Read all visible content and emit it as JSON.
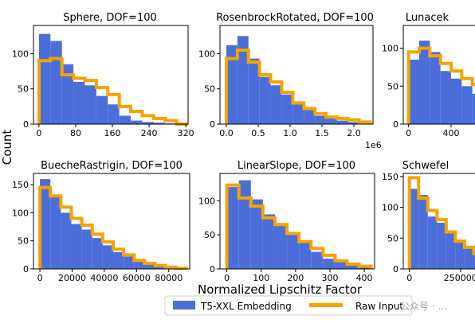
{
  "colors": {
    "embedding": "#4c6edb",
    "raw": "#f5a300"
  },
  "figure": {
    "xlabel": "Normalized Lipschitz Factor",
    "ylabel": "Count",
    "legend": {
      "embedding_label": "T5-XXL Embedding",
      "raw_label": "Raw Input"
    },
    "watermark": "公众号 · ..."
  },
  "chart_data": [
    {
      "type": "bar",
      "title": "Sphere, DOF=100",
      "x_edges": [
        0,
        25,
        50,
        75,
        100,
        125,
        150,
        175,
        200,
        225,
        250,
        275,
        300,
        325
      ],
      "series": [
        {
          "name": "T5-XXL Embedding",
          "values": [
            128,
            118,
            85,
            60,
            55,
            40,
            28,
            12,
            5,
            3,
            2,
            1,
            0
          ]
        },
        {
          "name": "Raw Input",
          "values": [
            90,
            93,
            70,
            65,
            62,
            52,
            42,
            25,
            18,
            12,
            8,
            5,
            0
          ]
        }
      ],
      "xlim": [
        -12,
        325
      ],
      "ylim": [
        0,
        140
      ],
      "xticks": [
        0,
        80,
        160,
        240,
        320
      ],
      "xtick_labels": [
        "0",
        "80",
        "160",
        "240",
        "320"
      ],
      "yticks": [
        0,
        50,
        100
      ],
      "ytick_labels": [
        "0",
        "50",
        "100"
      ]
    },
    {
      "type": "bar",
      "title": "RosenbrockRotated, DOF=100",
      "x_edges": [
        0,
        0.1736,
        0.3472,
        0.5208,
        0.6944,
        0.868,
        1.0416,
        1.2152,
        1.3888,
        1.5624,
        1.736,
        1.9096,
        2.0832,
        2.2568
      ],
      "series": [
        {
          "name": "T5-XXL Embedding",
          "values": [
            112,
            125,
            93,
            67,
            55,
            42,
            28,
            20,
            12,
            8,
            5,
            3,
            2
          ]
        },
        {
          "name": "Raw Input",
          "values": [
            93,
            105,
            88,
            70,
            60,
            45,
            30,
            22,
            15,
            10,
            8,
            6,
            3
          ]
        }
      ],
      "xlim": [
        -0.1,
        2.3
      ],
      "ylim": [
        0,
        140
      ],
      "xticks": [
        0,
        0.5,
        1.0,
        1.5,
        2.0
      ],
      "xtick_labels": [
        "0.0",
        "0.5",
        "1.0",
        "1.5",
        "2.0"
      ],
      "yticks": [
        0,
        50,
        100
      ],
      "ytick_labels": [
        "0",
        "50",
        "100"
      ],
      "offset_label": "1e6"
    },
    {
      "type": "bar",
      "title": "Lunacek",
      "x_edges": [
        0,
        100,
        200,
        300,
        400,
        500,
        600,
        700
      ],
      "series": [
        {
          "name": "T5-XXL Embedding",
          "values": [
            85,
            110,
            95,
            70,
            60,
            50,
            40
          ]
        },
        {
          "name": "Raw Input",
          "values": [
            95,
            100,
            90,
            80,
            70,
            60,
            52
          ]
        }
      ],
      "xlim": [
        -50,
        700
      ],
      "ylim": [
        0,
        130
      ],
      "xticks": [
        0,
        400
      ],
      "xtick_labels": [
        "0",
        "400"
      ],
      "yticks": [
        0,
        50,
        100
      ],
      "ytick_labels": [
        "0",
        "50",
        "100"
      ]
    },
    {
      "type": "bar",
      "title": "BuecheRastrigin, DOF=100",
      "x_edges": [
        0,
        6500,
        13000,
        19500,
        26000,
        32500,
        39000,
        45500,
        52000,
        58500,
        65000,
        71500,
        78000,
        84500,
        91000
      ],
      "series": [
        {
          "name": "T5-XXL Embedding",
          "values": [
            160,
            130,
            100,
            80,
            70,
            55,
            42,
            30,
            22,
            15,
            8,
            5,
            3,
            2
          ]
        },
        {
          "name": "Raw Input",
          "values": [
            145,
            130,
            110,
            90,
            78,
            62,
            48,
            35,
            25,
            15,
            10,
            6,
            3,
            1
          ]
        }
      ],
      "xlim": [
        -4000,
        93000
      ],
      "ylim": [
        0,
        170
      ],
      "xticks": [
        0,
        20000,
        40000,
        60000,
        80000
      ],
      "xtick_labels": [
        "0",
        "20000",
        "40000",
        "60000",
        "80000"
      ],
      "yticks": [
        0,
        50,
        100,
        150
      ],
      "ytick_labels": [
        "0",
        "50",
        "100",
        "150"
      ]
    },
    {
      "type": "bar",
      "title": "LinearSlope, DOF=100",
      "x_edges": [
        0,
        35,
        70,
        105,
        140,
        175,
        210,
        245,
        280,
        315,
        350,
        385,
        420
      ],
      "series": [
        {
          "name": "T5-XXL Embedding",
          "values": [
            120,
            130,
            102,
            80,
            65,
            50,
            38,
            25,
            15,
            10,
            6,
            3
          ]
        },
        {
          "name": "Raw Input",
          "values": [
            123,
            104,
            92,
            75,
            65,
            52,
            40,
            30,
            20,
            12,
            7,
            4
          ]
        }
      ],
      "xlim": [
        -20,
        430
      ],
      "ylim": [
        0,
        140
      ],
      "xticks": [
        0,
        100,
        200,
        300,
        400
      ],
      "xtick_labels": [
        "0",
        "100",
        "200",
        "300",
        "400"
      ],
      "yticks": [
        0,
        50,
        100
      ],
      "ytick_labels": [
        "0",
        "50",
        "100"
      ]
    },
    {
      "type": "bar",
      "title": "Schwefel",
      "x_edges": [
        0,
        45000,
        90000,
        135000,
        180000,
        225000,
        270000,
        315000,
        360000
      ],
      "series": [
        {
          "name": "T5-XXL Embedding",
          "values": [
            130,
            120,
            85,
            75,
            58,
            45,
            35,
            25
          ]
        },
        {
          "name": "Raw Input",
          "values": [
            148,
            115,
            95,
            80,
            60,
            45,
            35,
            25
          ]
        }
      ],
      "xlim": [
        -30000,
        360000
      ],
      "ylim": [
        0,
        155
      ],
      "xticks": [
        0,
        250000
      ],
      "xtick_labels": [
        "0",
        "250000"
      ],
      "yticks": [
        0,
        50,
        100,
        150
      ],
      "ytick_labels": [
        "0",
        "50",
        "100",
        "150"
      ]
    }
  ]
}
